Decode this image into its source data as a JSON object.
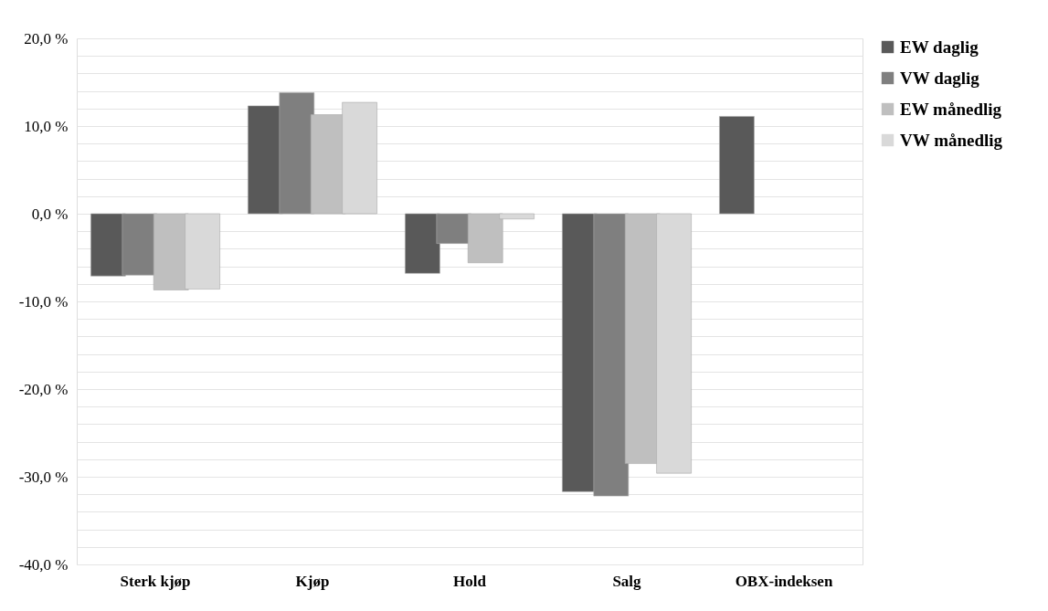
{
  "chart_data": {
    "type": "bar",
    "categories": [
      "Sterk kjøp",
      "Kjøp",
      "Hold",
      "Salg",
      "OBX-indeksen"
    ],
    "series": [
      {
        "name": "EW daglig",
        "color": "#595959",
        "values": [
          -7.1,
          12.3,
          -6.8,
          -31.7,
          11.1
        ]
      },
      {
        "name": "VW daglig",
        "color": "#7f7f7f",
        "values": [
          -7.0,
          13.8,
          -3.4,
          -32.2,
          null
        ]
      },
      {
        "name": "EW månedlig",
        "color": "#bfbfbf",
        "values": [
          -8.7,
          11.3,
          -5.6,
          -28.5,
          null
        ]
      },
      {
        "name": "VW månedlig",
        "color": "#d9d9d9",
        "values": [
          -8.6,
          12.7,
          -0.6,
          -29.6,
          null
        ]
      }
    ],
    "ylim": [
      -40,
      20
    ],
    "yticks": [
      {
        "value": -40,
        "label": "-40,0 %"
      },
      {
        "value": -38,
        "label": null
      },
      {
        "value": -36,
        "label": null
      },
      {
        "value": -34,
        "label": null
      },
      {
        "value": -32,
        "label": null
      },
      {
        "value": -30,
        "label": "-30,0 %"
      },
      {
        "value": -28,
        "label": null
      },
      {
        "value": -26,
        "label": null
      },
      {
        "value": -24,
        "label": null
      },
      {
        "value": -22,
        "label": null
      },
      {
        "value": -20,
        "label": "-20,0 %"
      },
      {
        "value": -18,
        "label": null
      },
      {
        "value": -16,
        "label": null
      },
      {
        "value": -14,
        "label": null
      },
      {
        "value": -12,
        "label": null
      },
      {
        "value": -10,
        "label": "-10,0 %"
      },
      {
        "value": -8,
        "label": null
      },
      {
        "value": -6,
        "label": null
      },
      {
        "value": -4,
        "label": null
      },
      {
        "value": -2,
        "label": null
      },
      {
        "value": 0,
        "label": "0,0 %"
      },
      {
        "value": 2,
        "label": null
      },
      {
        "value": 4,
        "label": null
      },
      {
        "value": 6,
        "label": null
      },
      {
        "value": 8,
        "label": null
      },
      {
        "value": 10,
        "label": "10,0 %"
      },
      {
        "value": 12,
        "label": null
      },
      {
        "value": 14,
        "label": null
      },
      {
        "value": 16,
        "label": null
      },
      {
        "value": 18,
        "label": null
      },
      {
        "value": 20,
        "label": "20,0 %"
      }
    ],
    "grid": "y",
    "legend": "right"
  }
}
